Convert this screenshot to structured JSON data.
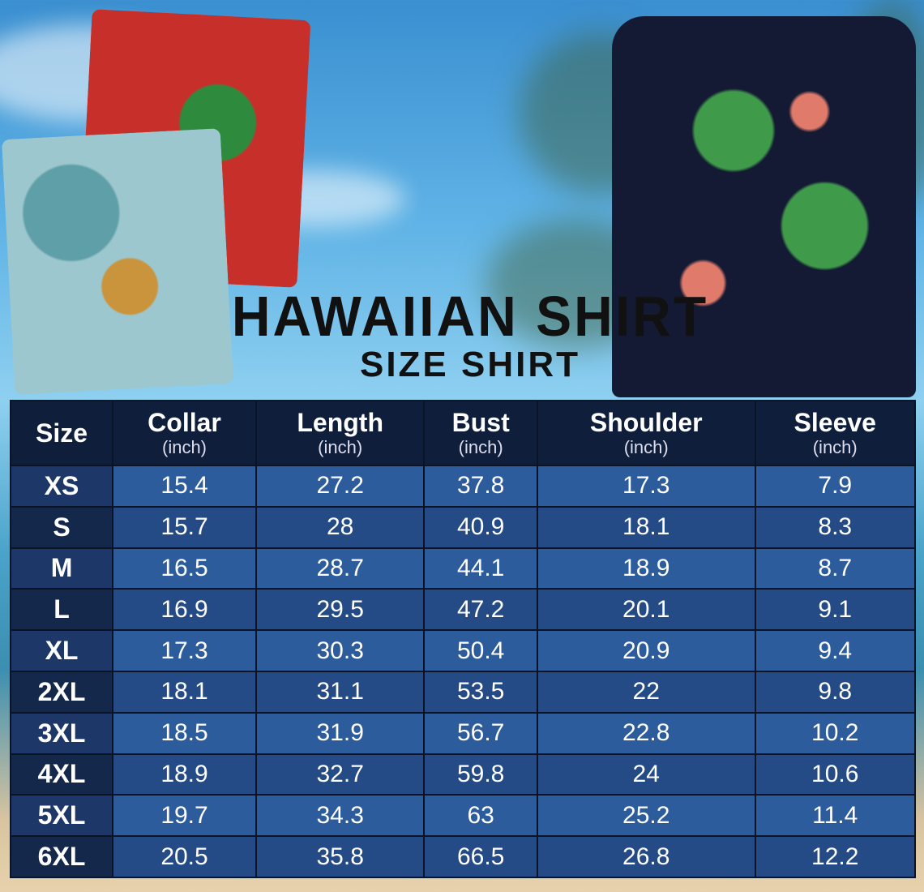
{
  "title": "HAWAIIAN SHIRT",
  "subtitle": "SIZE SHIRT",
  "colors": {
    "header_bg": "#0f1e3a",
    "row_light": "#2d5c9d",
    "row_dark": "#244b85",
    "size_col": "#13284b"
  },
  "table": {
    "headers": [
      {
        "label": "Size",
        "unit": ""
      },
      {
        "label": "Collar",
        "unit": "(inch)"
      },
      {
        "label": "Length",
        "unit": "(inch)"
      },
      {
        "label": "Bust",
        "unit": "(inch)"
      },
      {
        "label": "Shoulder",
        "unit": "(inch)"
      },
      {
        "label": "Sleeve",
        "unit": "(inch)"
      }
    ],
    "rows": [
      [
        "XS",
        "15.4",
        "27.2",
        "37.8",
        "17.3",
        "7.9"
      ],
      [
        "S",
        "15.7",
        "28",
        "40.9",
        "18.1",
        "8.3"
      ],
      [
        "M",
        "16.5",
        "28.7",
        "44.1",
        "18.9",
        "8.7"
      ],
      [
        "L",
        "16.9",
        "29.5",
        "47.2",
        "20.1",
        "9.1"
      ],
      [
        "XL",
        "17.3",
        "30.3",
        "50.4",
        "20.9",
        "9.4"
      ],
      [
        "2XL",
        "18.1",
        "31.1",
        "53.5",
        "22",
        "9.8"
      ],
      [
        "3XL",
        "18.5",
        "31.9",
        "56.7",
        "22.8",
        "10.2"
      ],
      [
        "4XL",
        "18.9",
        "32.7",
        "59.8",
        "24",
        "10.6"
      ],
      [
        "5XL",
        "19.7",
        "34.3",
        "63",
        "25.2",
        "11.4"
      ],
      [
        "6XL",
        "20.5",
        "35.8",
        "66.5",
        "26.8",
        "12.2"
      ]
    ]
  }
}
